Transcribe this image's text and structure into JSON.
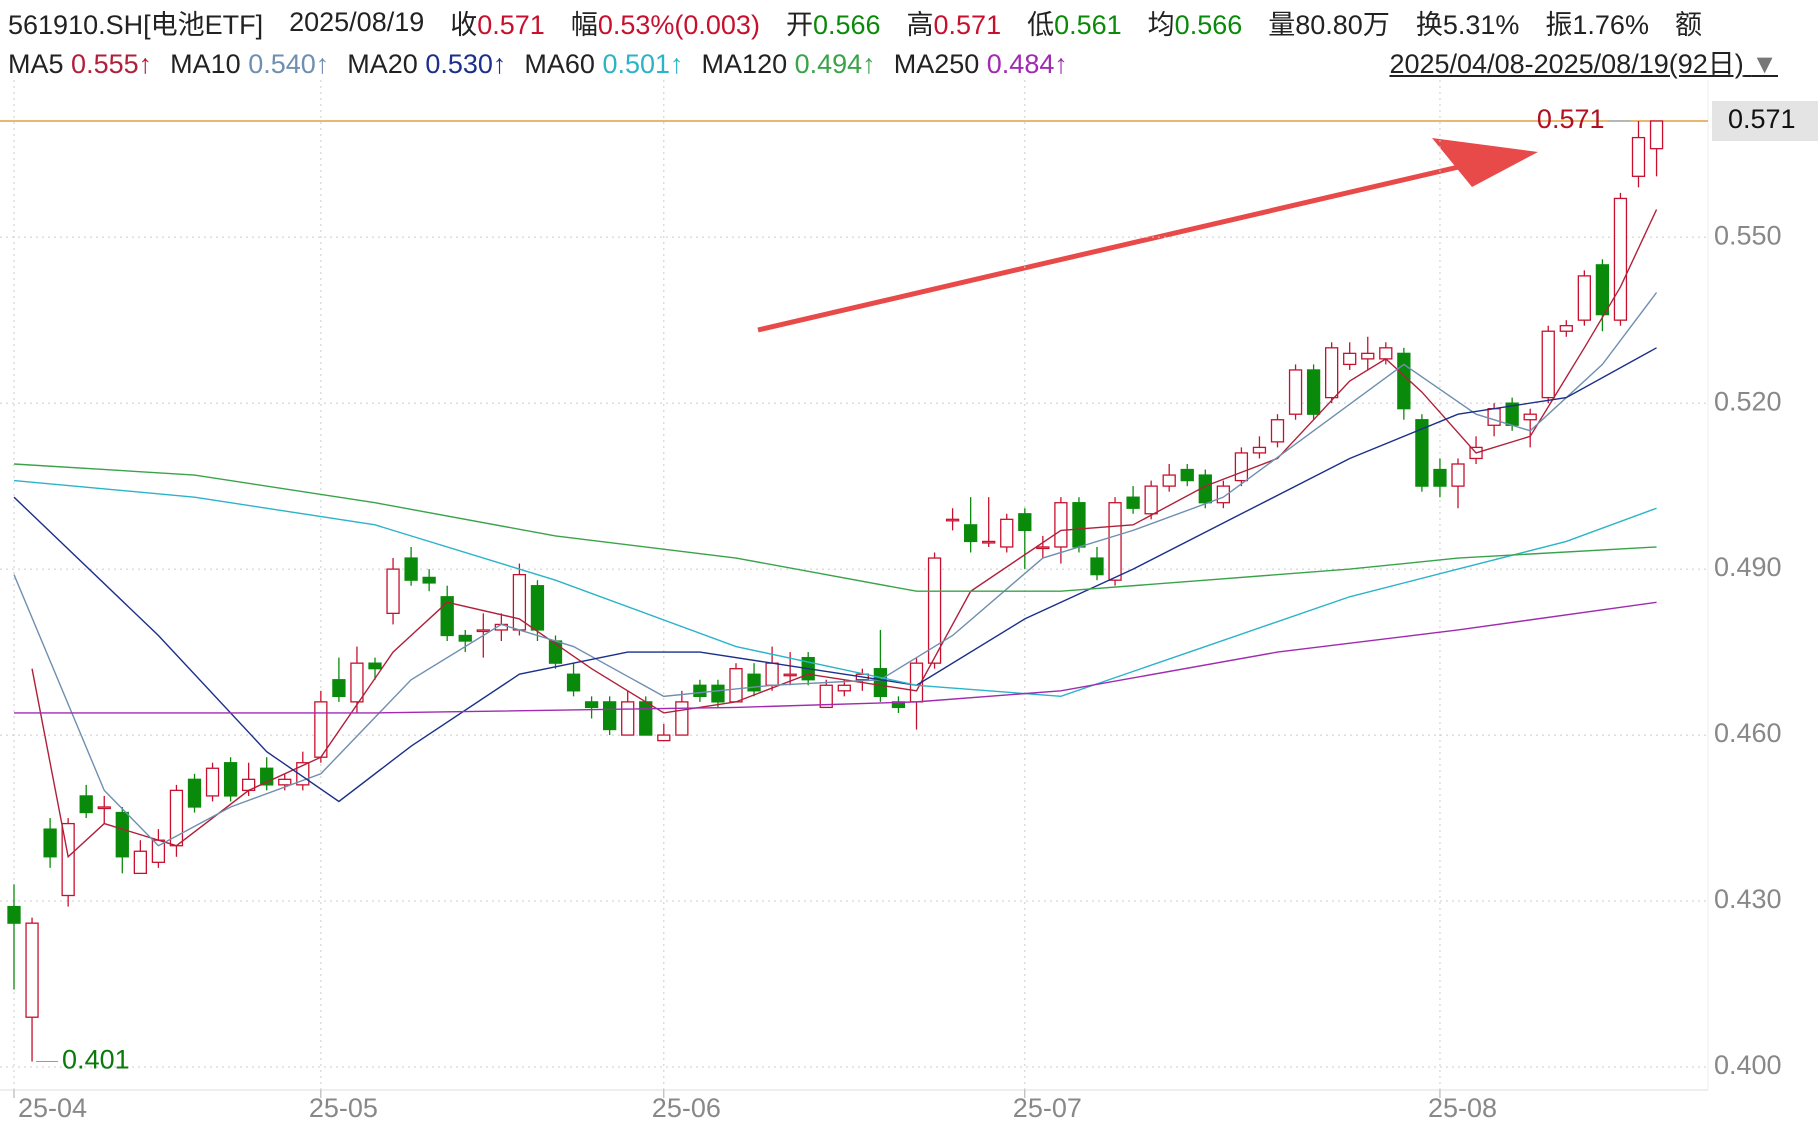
{
  "chart_data": {
    "type": "candlestick",
    "header": {
      "code": "561910.SH[电池ETF]",
      "date": "2025/08/19",
      "quote": [
        {
          "label": "收",
          "value": "0.571",
          "color": "#c8102e"
        },
        {
          "label": "幅",
          "value": "0.53%(0.003)",
          "color": "#c8102e"
        },
        {
          "label": "开",
          "value": "0.566",
          "color": "#0a8a0a"
        },
        {
          "label": "高",
          "value": "0.571",
          "color": "#c8102e"
        },
        {
          "label": "低",
          "value": "0.561",
          "color": "#0a8a0a"
        },
        {
          "label": "均",
          "value": "0.566",
          "color": "#0a8a0a"
        },
        {
          "label": "量",
          "value": "80.80万",
          "color": "#222"
        },
        {
          "label": "换",
          "value": "5.31%",
          "color": "#222"
        },
        {
          "label": "振",
          "value": "1.76%",
          "color": "#222"
        },
        {
          "label": "额",
          "value": "",
          "color": "#222"
        }
      ],
      "range": "2025/04/08-2025/08/19(92日)"
    },
    "up_color": "#c8102e",
    "down_color": "#0a8a0a",
    "open": [
      0.429,
      0.409,
      0.443,
      0.431,
      0.449,
      0.447,
      0.446,
      0.435,
      0.437,
      0.44,
      0.452,
      0.449,
      0.455,
      0.45,
      0.454,
      0.451,
      0.451,
      0.456,
      0.47,
      0.466,
      0.473,
      0.482,
      0.492,
      0.4885,
      0.485,
      0.478,
      0.479,
      0.479,
      0.479,
      0.487,
      0.477,
      0.471,
      0.466,
      0.466,
      0.46,
      0.466,
      0.459,
      0.46,
      0.469,
      0.469,
      0.466,
      0.471,
      0.469,
      0.471,
      0.474,
      0.465,
      0.468,
      0.47,
      0.472,
      0.466,
      0.466,
      0.473,
      0.499,
      0.498,
      0.495,
      0.494,
      0.5,
      0.494,
      0.494,
      0.502,
      0.492,
      0.488,
      0.503,
      0.5,
      0.505,
      0.508,
      0.507,
      0.502,
      0.506,
      0.511,
      0.513,
      0.518,
      0.526,
      0.521,
      0.527,
      0.528,
      0.528,
      0.529,
      0.517,
      0.508,
      0.505,
      0.51,
      0.516,
      0.52,
      0.517,
      0.521,
      0.533,
      0.535,
      0.545,
      0.535,
      0.561,
      0.566
    ],
    "high": [
      0.433,
      0.427,
      0.445,
      0.445,
      0.451,
      0.449,
      0.447,
      0.441,
      0.443,
      0.451,
      0.453,
      0.455,
      0.456,
      0.455,
      0.456,
      0.453,
      0.457,
      0.468,
      0.474,
      0.476,
      0.474,
      0.492,
      0.494,
      0.49,
      0.487,
      0.479,
      0.482,
      0.482,
      0.491,
      0.488,
      0.478,
      0.473,
      0.467,
      0.467,
      0.468,
      0.467,
      0.462,
      0.468,
      0.47,
      0.47,
      0.473,
      0.473,
      0.476,
      0.475,
      0.475,
      0.47,
      0.47,
      0.472,
      0.479,
      0.467,
      0.474,
      0.493,
      0.501,
      0.503,
      0.503,
      0.5,
      0.501,
      0.496,
      0.503,
      0.503,
      0.494,
      0.503,
      0.505,
      0.506,
      0.509,
      0.509,
      0.508,
      0.506,
      0.512,
      0.514,
      0.518,
      0.527,
      0.527,
      0.531,
      0.531,
      0.532,
      0.531,
      0.53,
      0.518,
      0.51,
      0.51,
      0.514,
      0.52,
      0.521,
      0.519,
      0.534,
      0.535,
      0.544,
      0.546,
      0.558,
      0.571,
      0.571
    ],
    "low": [
      0.414,
      0.401,
      0.436,
      0.429,
      0.445,
      0.444,
      0.435,
      0.435,
      0.436,
      0.438,
      0.446,
      0.448,
      0.448,
      0.449,
      0.45,
      0.45,
      0.45,
      0.455,
      0.466,
      0.464,
      0.47,
      0.48,
      0.487,
      0.486,
      0.477,
      0.475,
      0.474,
      0.477,
      0.478,
      0.477,
      0.472,
      0.467,
      0.463,
      0.46,
      0.46,
      0.46,
      0.459,
      0.46,
      0.466,
      0.465,
      0.466,
      0.467,
      0.468,
      0.469,
      0.469,
      0.465,
      0.467,
      0.468,
      0.466,
      0.464,
      0.461,
      0.472,
      0.497,
      0.493,
      0.494,
      0.493,
      0.49,
      0.492,
      0.491,
      0.493,
      0.488,
      0.487,
      0.5,
      0.499,
      0.504,
      0.505,
      0.501,
      0.501,
      0.505,
      0.51,
      0.512,
      0.517,
      0.517,
      0.52,
      0.526,
      0.526,
      0.527,
      0.517,
      0.504,
      0.503,
      0.501,
      0.509,
      0.514,
      0.515,
      0.512,
      0.52,
      0.532,
      0.534,
      0.533,
      0.534,
      0.559,
      0.561
    ],
    "close": [
      0.426,
      0.426,
      0.438,
      0.444,
      0.446,
      0.447,
      0.438,
      0.439,
      0.441,
      0.45,
      0.447,
      0.454,
      0.449,
      0.452,
      0.451,
      0.452,
      0.455,
      0.466,
      0.467,
      0.473,
      0.472,
      0.49,
      0.488,
      0.4875,
      0.478,
      0.477,
      0.479,
      0.48,
      0.489,
      0.479,
      0.473,
      0.468,
      0.465,
      0.461,
      0.466,
      0.46,
      0.46,
      0.466,
      0.467,
      0.466,
      0.472,
      0.468,
      0.473,
      0.471,
      0.47,
      0.469,
      0.469,
      0.471,
      0.467,
      0.465,
      0.473,
      0.492,
      0.499,
      0.495,
      0.495,
      0.499,
      0.497,
      0.494,
      0.502,
      0.494,
      0.489,
      0.502,
      0.501,
      0.505,
      0.507,
      0.506,
      0.502,
      0.505,
      0.511,
      0.512,
      0.517,
      0.526,
      0.518,
      0.53,
      0.529,
      0.529,
      0.53,
      0.519,
      0.505,
      0.505,
      0.509,
      0.512,
      0.519,
      0.516,
      0.518,
      0.533,
      0.534,
      0.543,
      0.536,
      0.557,
      0.568,
      0.571
    ],
    "series": [
      {
        "name": "MA5",
        "color": "#b0203a",
        "value_label": "0.555↑",
        "x": [
          1,
          3,
          5,
          9,
          13,
          17,
          21,
          24,
          28,
          32,
          36,
          40,
          44,
          48,
          50,
          53,
          58,
          62,
          66,
          70,
          74,
          76,
          78,
          81,
          84,
          87,
          89,
          91
        ],
        "values": [
          0.472,
          0.438,
          0.444,
          0.44,
          0.45,
          0.456,
          0.475,
          0.484,
          0.481,
          0.472,
          0.464,
          0.466,
          0.471,
          0.469,
          0.468,
          0.486,
          0.497,
          0.498,
          0.505,
          0.51,
          0.524,
          0.528,
          0.522,
          0.511,
          0.514,
          0.53,
          0.541,
          0.555
        ]
      },
      {
        "name": "MA10",
        "color": "#6f8fb0",
        "value_label": "0.540↑",
        "x": [
          0,
          5,
          8,
          12,
          17,
          22,
          27,
          31,
          36,
          42,
          48,
          52,
          57,
          62,
          67,
          72,
          77,
          81,
          84,
          88,
          91
        ],
        "values": [
          0.489,
          0.45,
          0.44,
          0.447,
          0.453,
          0.47,
          0.48,
          0.476,
          0.467,
          0.469,
          0.47,
          0.478,
          0.492,
          0.497,
          0.503,
          0.515,
          0.527,
          0.518,
          0.515,
          0.527,
          0.54
        ]
      },
      {
        "name": "MA20",
        "color": "#1c2f8a",
        "value_label": "0.530↑",
        "x": [
          0,
          8,
          14,
          18,
          22,
          28,
          34,
          38,
          44,
          50,
          56,
          62,
          68,
          74,
          80,
          86,
          91
        ],
        "values": [
          0.503,
          0.478,
          0.457,
          0.448,
          0.458,
          0.471,
          0.475,
          0.475,
          0.472,
          0.469,
          0.481,
          0.49,
          0.5,
          0.51,
          0.518,
          0.521,
          0.53
        ]
      },
      {
        "name": "MA60",
        "color": "#2bb3c8",
        "value_label": "0.501↑",
        "x": [
          0,
          10,
          20,
          30,
          40,
          50,
          58,
          66,
          74,
          80,
          86,
          91
        ],
        "values": [
          0.506,
          0.503,
          0.498,
          0.488,
          0.476,
          0.469,
          0.467,
          0.476,
          0.485,
          0.49,
          0.495,
          0.501
        ]
      },
      {
        "name": "MA120",
        "color": "#3aa34a",
        "value_label": "0.494↑",
        "x": [
          0,
          10,
          20,
          30,
          40,
          50,
          58,
          66,
          74,
          80,
          91
        ],
        "values": [
          0.509,
          0.507,
          0.502,
          0.496,
          0.492,
          0.486,
          0.486,
          0.488,
          0.49,
          0.492,
          0.494
        ]
      },
      {
        "name": "MA250",
        "color": "#a02bb0",
        "value_label": "0.484↑",
        "x": [
          0,
          20,
          40,
          50,
          58,
          70,
          80,
          91
        ],
        "values": [
          0.464,
          0.464,
          0.465,
          0.466,
          0.468,
          0.475,
          0.479,
          0.484
        ]
      }
    ],
    "ylim": [
      0.396,
      0.573
    ],
    "yticks": [
      {
        "value": 0.4,
        "label": "0.400"
      },
      {
        "value": 0.43,
        "label": "0.430"
      },
      {
        "value": 0.46,
        "label": "0.460"
      },
      {
        "value": 0.49,
        "label": "0.490"
      },
      {
        "value": 0.52,
        "label": "0.520"
      },
      {
        "value": 0.55,
        "label": "0.550"
      }
    ],
    "xticks": [
      {
        "value": 0,
        "label": "25-04"
      },
      {
        "value": 17,
        "label": "25-05"
      },
      {
        "value": 36,
        "label": "25-06"
      },
      {
        "value": 56,
        "label": "25-07"
      },
      {
        "value": 79,
        "label": "25-08"
      }
    ],
    "grid": true
  }
}
